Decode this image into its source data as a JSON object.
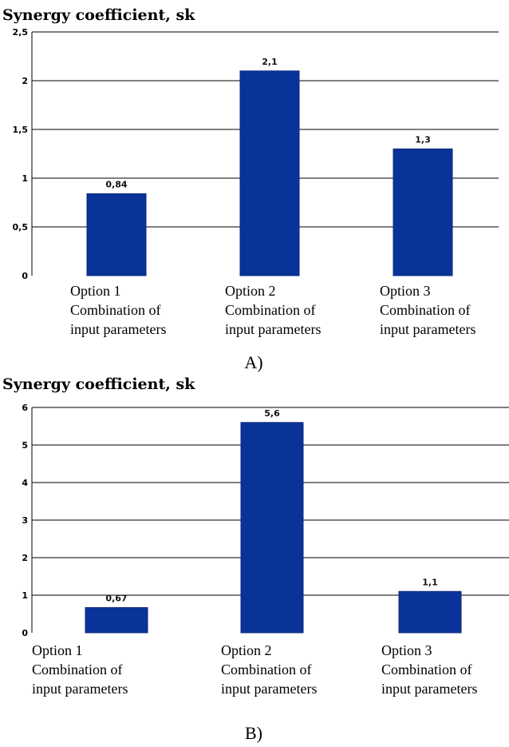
{
  "chart_data": [
    {
      "type": "bar",
      "title": "Synergy coefficient, sk",
      "categories": [
        [
          "Option 1",
          "Combination of",
          "input parameters"
        ],
        [
          "Option 2",
          "Combination of",
          "input parameters"
        ],
        [
          "Option 3",
          "Combination of",
          "input parameters"
        ]
      ],
      "values": [
        0.84,
        2.1,
        1.3
      ],
      "value_labels": [
        "0,84",
        "2,1",
        "1,3"
      ],
      "ylim": [
        0,
        2.5
      ],
      "yticks": [
        0,
        0.5,
        1,
        1.5,
        2,
        2.5
      ],
      "ytick_labels": [
        "0",
        "0,5",
        "1",
        "1,5",
        "2",
        "2,5"
      ],
      "grid": true,
      "bar_color": "#0a3399",
      "caption": "A)"
    },
    {
      "type": "bar",
      "title": "Synergy coefficient, sk",
      "categories": [
        [
          "Option 1",
          "Combination of",
          "input parameters"
        ],
        [
          "Option 2",
          "Combination of",
          "input parameters"
        ],
        [
          "Option 3",
          "Combination of",
          "input parameters"
        ]
      ],
      "values": [
        0.67,
        5.6,
        1.1
      ],
      "value_labels": [
        "0,67",
        "5,6",
        "1,1"
      ],
      "ylim": [
        0,
        6
      ],
      "yticks": [
        0,
        1,
        2,
        3,
        4,
        5,
        6
      ],
      "ytick_labels": [
        "0",
        "1",
        "2",
        "3",
        "4",
        "5",
        "6"
      ],
      "grid": true,
      "bar_color": "#0a3399",
      "caption": "B)"
    }
  ]
}
